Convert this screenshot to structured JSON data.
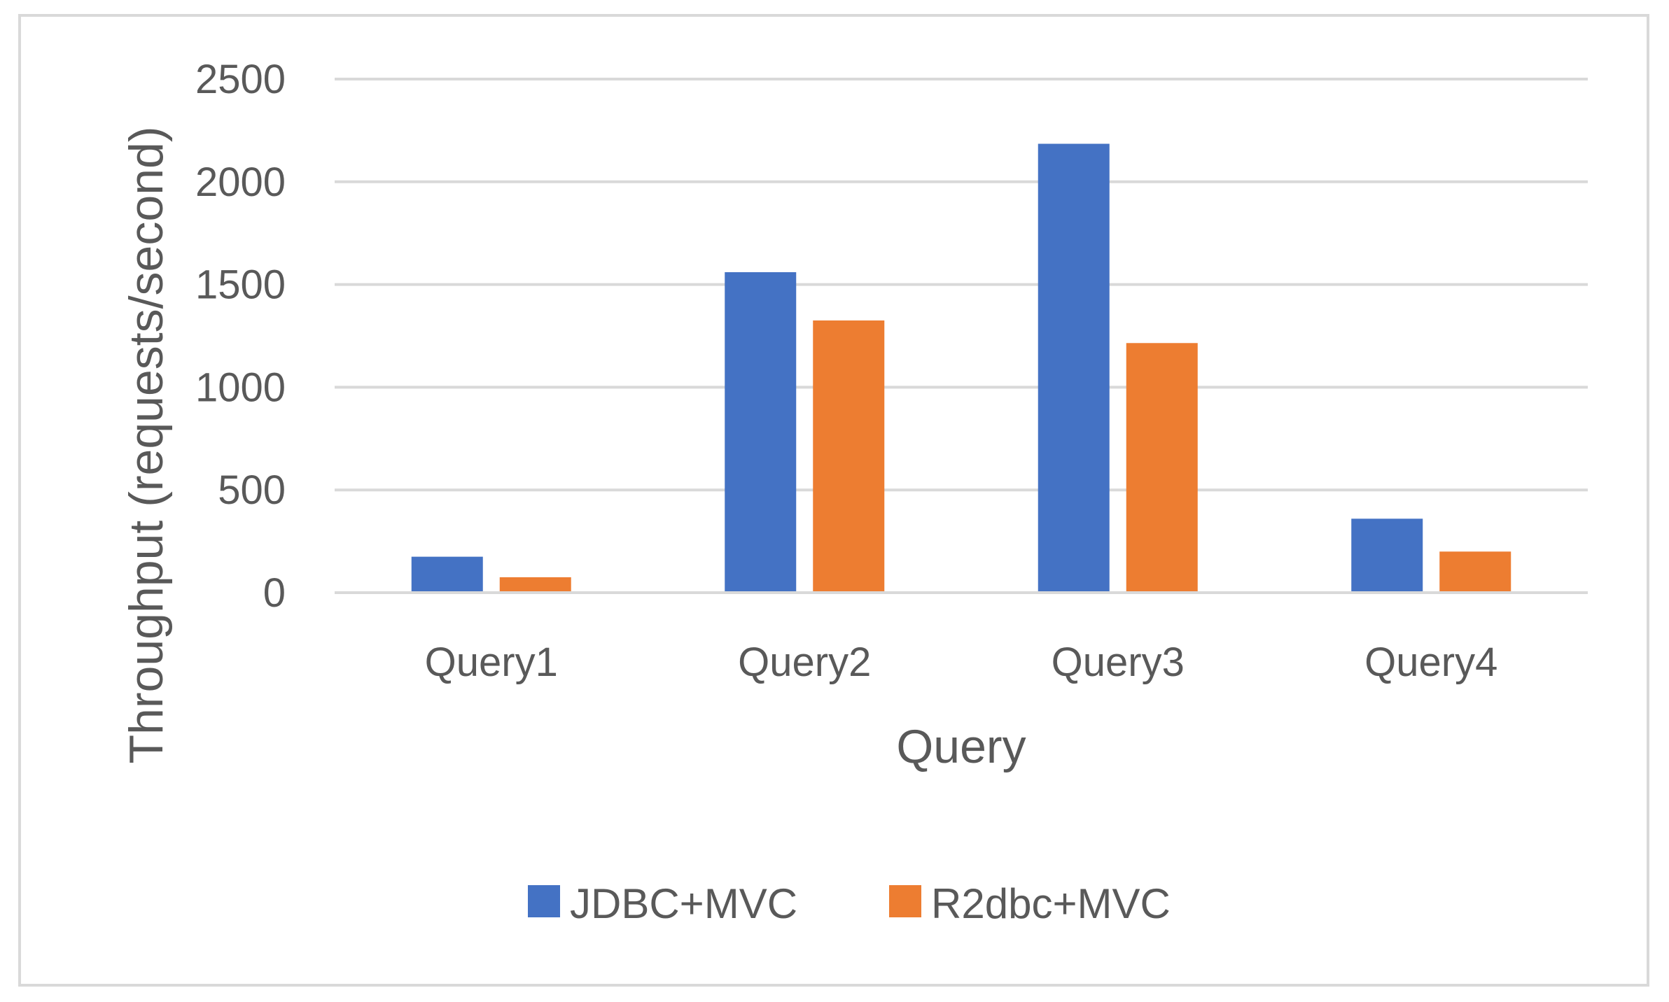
{
  "chart_data": {
    "type": "bar",
    "title": "",
    "xlabel": "Query",
    "ylabel": "Throughput (requests/second)",
    "categories": [
      "Query1",
      "Query2",
      "Query3",
      "Query4"
    ],
    "series": [
      {
        "name": "JDBC+MVC",
        "color": "#4472c4",
        "values": [
          175,
          1560,
          2185,
          360
        ]
      },
      {
        "name": "R2dbc+MVC",
        "color": "#ed7d31",
        "values": [
          75,
          1325,
          1215,
          200
        ]
      }
    ],
    "ylim": [
      0,
      2500
    ],
    "yticks": [
      0,
      500,
      1000,
      1500,
      2000,
      2500
    ],
    "grid": true,
    "legend_position": "bottom"
  }
}
